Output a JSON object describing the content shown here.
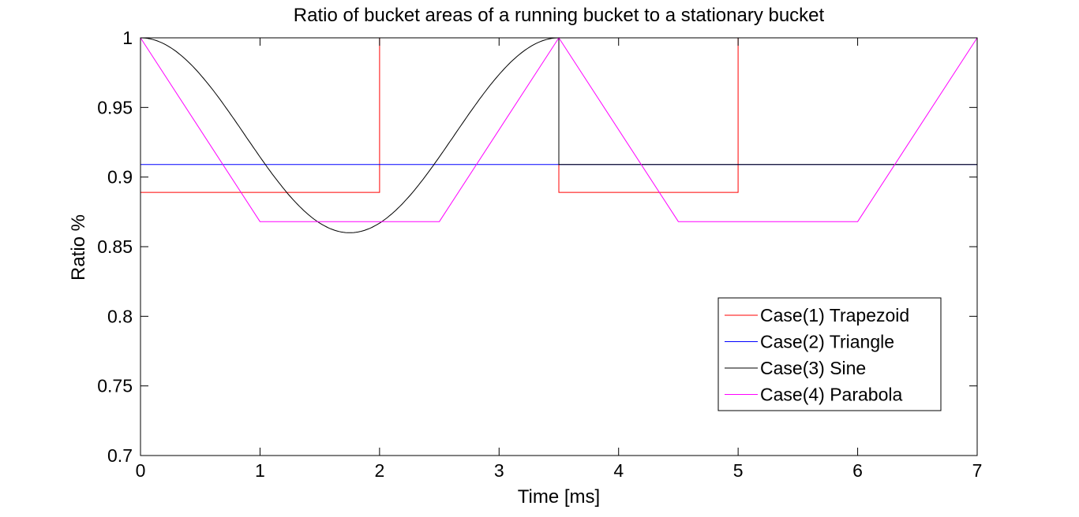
{
  "chart_data": {
    "type": "line",
    "title": "Ratio of bucket areas of a running bucket to a stationary bucket",
    "xlabel": "Time [ms]",
    "ylabel": "Ratio %",
    "xlim": [
      0,
      7
    ],
    "ylim": [
      0.7,
      1.0
    ],
    "x_ticks": [
      "0",
      "1",
      "2",
      "3",
      "4",
      "5",
      "6",
      "7"
    ],
    "y_ticks": [
      "0.7",
      "0.75",
      "0.8",
      "0.85",
      "0.9",
      "0.95",
      "1"
    ],
    "grid": false,
    "legend_position": "bottom-right",
    "series": [
      {
        "name": "Case(1) Trapezoid",
        "color": "#ff0000",
        "x": [
          0,
          0,
          2,
          2,
          3.5,
          3.5,
          5,
          5,
          7,
          7
        ],
        "y": [
          1,
          0.889,
          0.889,
          1,
          1,
          0.889,
          0.889,
          1,
          1,
          0.889
        ]
      },
      {
        "name": "Case(2) Triangle",
        "color": "#0000ff",
        "x": [
          0,
          3.5,
          3.5,
          3.5,
          7,
          7
        ],
        "y": [
          0.909,
          0.909,
          1,
          0.909,
          0.909,
          1
        ]
      },
      {
        "name": "Case(3) Sine",
        "color": "#000000",
        "x": [
          0,
          0.25,
          0.5,
          0.75,
          1,
          1.25,
          1.5,
          1.75,
          2,
          2.25,
          2.5,
          2.75,
          3,
          3.25,
          3.5,
          3.5,
          7
        ],
        "y": [
          1,
          0.968,
          0.939,
          0.913,
          0.892,
          0.875,
          0.864,
          0.86,
          0.864,
          0.875,
          0.892,
          0.913,
          0.939,
          0.968,
          1,
          0.909,
          0.909
        ]
      },
      {
        "name": "Case(4) Parabola",
        "color": "#ff00ff",
        "x": [
          0,
          1,
          2.5,
          3.5,
          4.5,
          6,
          7
        ],
        "y": [
          1,
          0.868,
          0.868,
          1,
          0.868,
          0.868,
          1
        ]
      }
    ]
  }
}
